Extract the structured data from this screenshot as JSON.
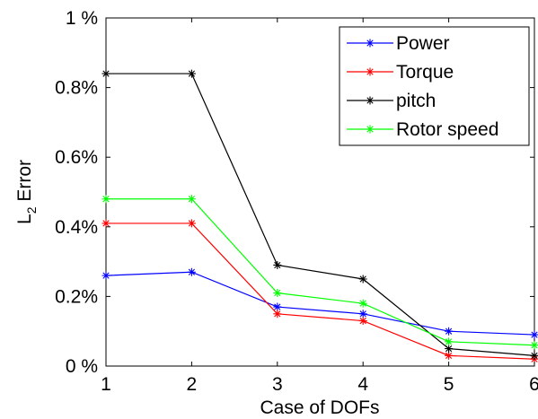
{
  "chart_data": {
    "type": "line",
    "xlabel": "Case of DOFs",
    "ylabel_main": "L",
    "ylabel_sub": "2",
    "ylabel_rest": " Error",
    "xlim": [
      1,
      6
    ],
    "ylim": [
      0,
      1.0
    ],
    "x_ticks": [
      1,
      2,
      3,
      4,
      5,
      6
    ],
    "x_tick_labels": [
      "1",
      "2",
      "3",
      "4",
      "5",
      "6"
    ],
    "y_ticks": [
      0,
      0.2,
      0.4,
      0.6,
      0.8,
      1.0
    ],
    "y_tick_labels": [
      "0 %",
      "0.2%",
      "0.4%",
      "0.6%",
      "0.8%",
      "1 %"
    ],
    "grid": false,
    "legend_position": "top-right",
    "x": [
      1,
      2,
      3,
      4,
      5,
      6
    ],
    "series": [
      {
        "name": "Power",
        "color": "#0000ff",
        "values": [
          0.26,
          0.27,
          0.17,
          0.15,
          0.1,
          0.09
        ]
      },
      {
        "name": "Torque",
        "color": "#ff0000",
        "values": [
          0.41,
          0.41,
          0.15,
          0.13,
          0.03,
          0.02
        ]
      },
      {
        "name": "pitch",
        "color": "#000000",
        "values": [
          0.84,
          0.84,
          0.29,
          0.25,
          0.05,
          0.03
        ]
      },
      {
        "name": "Rotor speed",
        "color": "#00ff00",
        "values": [
          0.48,
          0.48,
          0.21,
          0.18,
          0.07,
          0.06
        ]
      }
    ]
  }
}
